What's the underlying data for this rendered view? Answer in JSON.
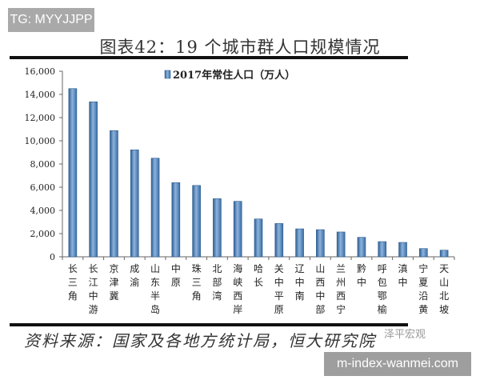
{
  "watermark_tg": "TG: MYYJJPP",
  "watermark_brand": "泽平宏观",
  "watermark_url": "m-index-wanmei.com",
  "source": "资料来源：国家及各地方统计局，恒大研究院",
  "chart_data": {
    "type": "bar",
    "title": "图表42：19 个城市群人口规模情况",
    "xlabel": "",
    "ylabel": "",
    "ylim": [
      0,
      16000
    ],
    "yticks": [
      "0",
      "2,000",
      "4,000",
      "6,000",
      "8,000",
      "10,000",
      "12,000",
      "14,000",
      "16,000"
    ],
    "grid": false,
    "legend_position": "top-center",
    "color": "#4f81bd",
    "categories": [
      "长三角",
      "长江中游",
      "京津冀",
      "成渝",
      "山东半岛",
      "中原",
      "珠三角",
      "北部湾",
      "海峡西岸",
      "哈长",
      "关中平原",
      "辽中南",
      "山西中部",
      "兰州西宁",
      "黔中",
      "呼包鄂榆",
      "滇中",
      "宁夏沿黄",
      "天山北坡"
    ],
    "series": [
      {
        "name": "2017年常住人口（万人）",
        "values": [
          14500,
          13360,
          10880,
          9220,
          8500,
          6390,
          6150,
          5010,
          4780,
          3260,
          2870,
          2410,
          2340,
          2140,
          1680,
          1310,
          1240,
          710,
          570
        ]
      }
    ]
  }
}
